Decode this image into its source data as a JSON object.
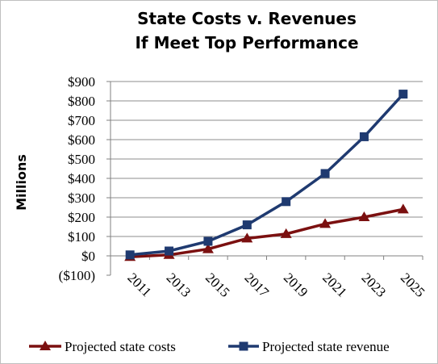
{
  "chart_data": {
    "type": "line",
    "title_lines": [
      "State Costs v. Revenues",
      "If Meet Top Performance"
    ],
    "xlabel": "",
    "ylabel": "Millions",
    "x": [
      "2011",
      "2013",
      "2015",
      "2017",
      "2019",
      "2021",
      "2023",
      "2025"
    ],
    "y_ticks": [
      "($100)",
      "$0",
      "$100",
      "$200",
      "$300",
      "$400",
      "$500",
      "$600",
      "$700",
      "$800",
      "$900"
    ],
    "ylim": [
      -100,
      900
    ],
    "grid": true,
    "legend_position": "bottom",
    "series": [
      {
        "name": "Projected state costs",
        "marker": "triangle",
        "color": "#7b1010",
        "values": [
          -5,
          5,
          35,
          90,
          113,
          165,
          200,
          240
        ]
      },
      {
        "name": "Projected state revenue",
        "marker": "square",
        "color": "#1f3a70",
        "values": [
          5,
          25,
          75,
          160,
          280,
          425,
          615,
          835
        ]
      }
    ]
  }
}
